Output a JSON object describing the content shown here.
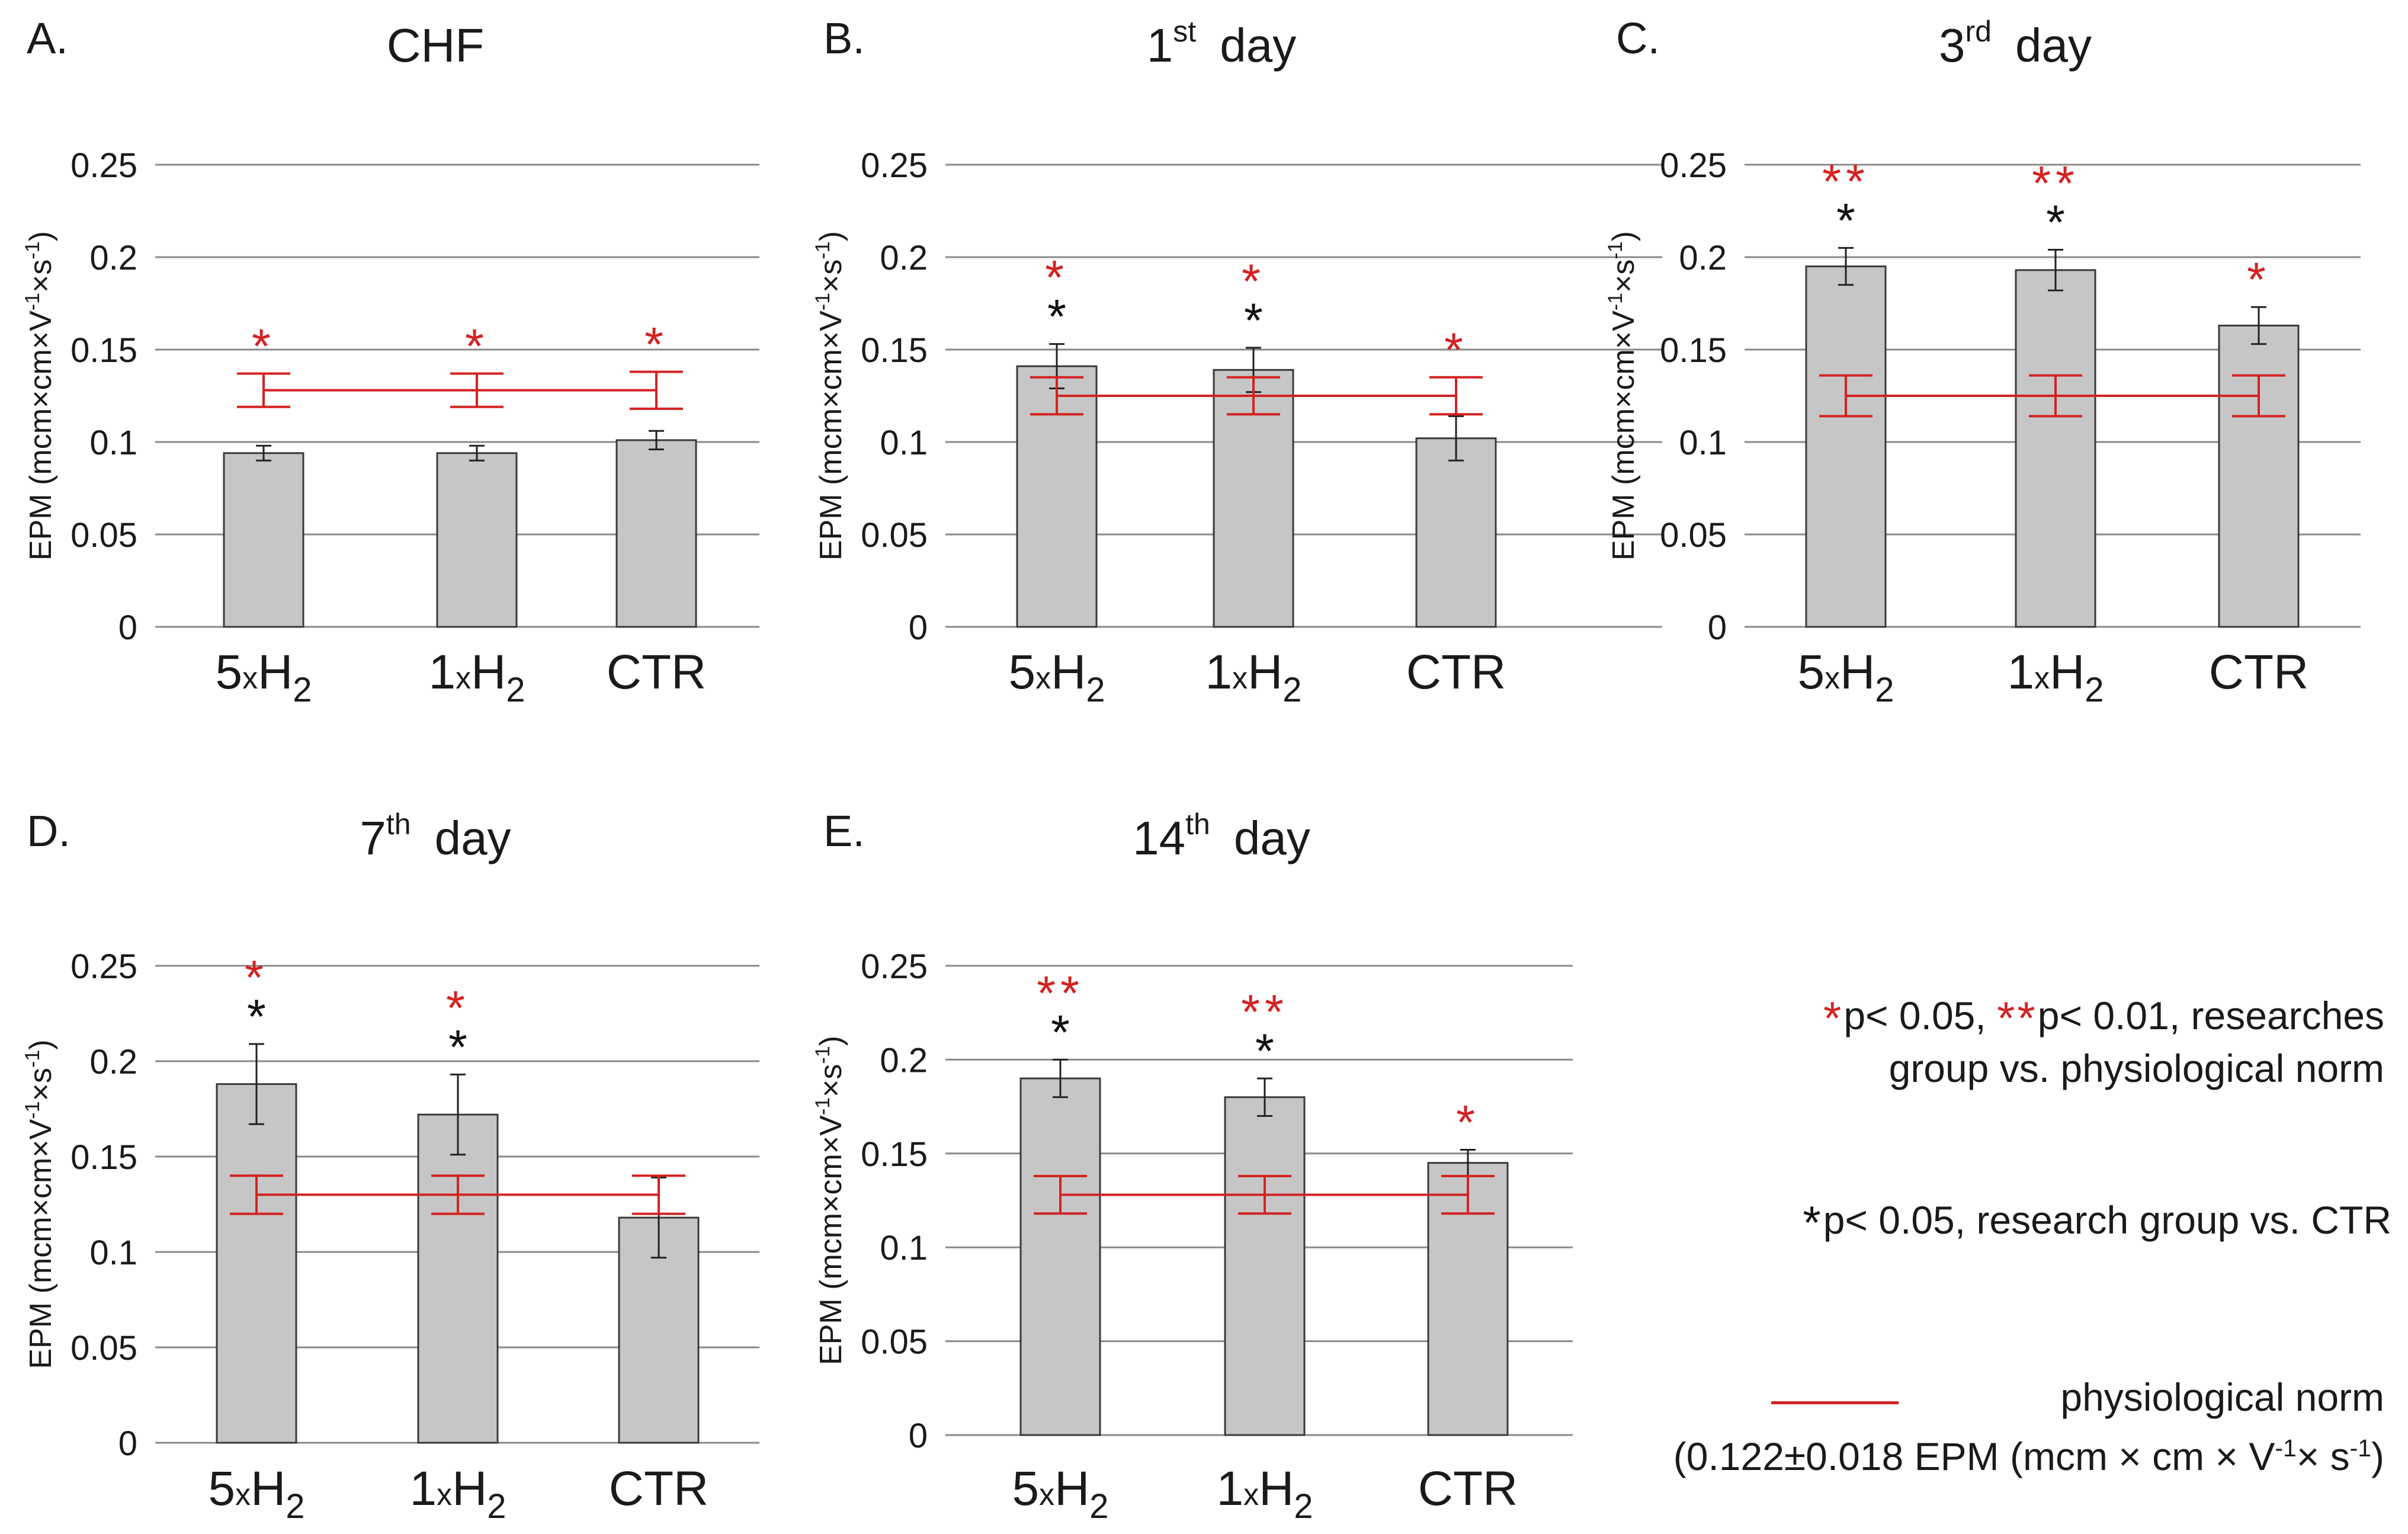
{
  "chart_data": [
    {
      "type": "bar",
      "panel_label": "A.",
      "title": "CHF",
      "title_parts": {
        "main": "CHF",
        "sup": "",
        "suffix": ""
      },
      "ylabel": "EPM (mcm×cm×V-1×s-1)",
      "ylabel_parts": {
        "pre": "EPM (mcm×cm×V",
        "sup1": "-1",
        "mid": "×s",
        "sup2": "-1",
        "post": ")"
      },
      "ylim": [
        0,
        0.25
      ],
      "yticks": [
        "0",
        "0.05",
        "0.1",
        "0.15",
        "0.2",
        "0.25"
      ],
      "categories": [
        {
          "prefix": "5",
          "mult": "x",
          "base": "H",
          "sub": "2"
        },
        {
          "prefix": "1",
          "mult": "x",
          "base": "H",
          "sub": "2"
        },
        {
          "prefix": "",
          "mult": "",
          "base": "CTR",
          "sub": ""
        }
      ],
      "values": [
        0.094,
        0.094,
        0.101
      ],
      "errors": [
        0.004,
        0.004,
        0.005
      ],
      "norm": {
        "mean": 0.128,
        "err": 0.009
      },
      "norm_errors": [
        0.009,
        0.009,
        0.01
      ],
      "stars_red": [
        "*",
        "*",
        "*"
      ],
      "stars_black": [
        "",
        "",
        ""
      ]
    },
    {
      "type": "bar",
      "panel_label": "B.",
      "title": "1st day",
      "title_parts": {
        "main": "1",
        "sup": "st",
        "suffix": "day"
      },
      "ylabel": "EPM (mcm×cm×V-1×s-1)",
      "ylabel_parts": {
        "pre": "EPM (mcm×cm×V",
        "sup1": "-1",
        "mid": "×s",
        "sup2": "-1",
        "post": ")"
      },
      "ylim": [
        0,
        0.25
      ],
      "yticks": [
        "0",
        "0.05",
        "0.1",
        "0.15",
        "0.2",
        "0.25"
      ],
      "categories": [
        {
          "prefix": "5",
          "mult": "x",
          "base": "H",
          "sub": "2"
        },
        {
          "prefix": "1",
          "mult": "x",
          "base": "H",
          "sub": "2"
        },
        {
          "prefix": "",
          "mult": "",
          "base": "CTR",
          "sub": ""
        }
      ],
      "values": [
        0.141,
        0.139,
        0.102
      ],
      "errors": [
        0.012,
        0.012,
        0.012
      ],
      "norm": {
        "mean": 0.125,
        "err": 0.01
      },
      "norm_errors": [
        0.01,
        0.01,
        0.01
      ],
      "stars_red": [
        "*",
        "*",
        "*"
      ],
      "stars_black": [
        "*",
        "*",
        ""
      ]
    },
    {
      "type": "bar",
      "panel_label": "C.",
      "title": "3rd day",
      "title_parts": {
        "main": "3",
        "sup": "rd",
        "suffix": "day"
      },
      "ylabel": "EPM (mcm×cm×V-1×s-1)",
      "ylabel_parts": {
        "pre": "EPM (mcm×cm×V",
        "sup1": "-1",
        "mid": "×s",
        "sup2": "-1",
        "post": ")"
      },
      "ylim": [
        0,
        0.25
      ],
      "yticks": [
        "0",
        "0.05",
        "0.1",
        "0.15",
        "0.2",
        "0.25"
      ],
      "categories": [
        {
          "prefix": "5",
          "mult": "x",
          "base": "H",
          "sub": "2"
        },
        {
          "prefix": "1",
          "mult": "x",
          "base": "H",
          "sub": "2"
        },
        {
          "prefix": "",
          "mult": "",
          "base": "CTR",
          "sub": ""
        }
      ],
      "values": [
        0.195,
        0.193,
        0.163
      ],
      "errors": [
        0.01,
        0.011,
        0.01
      ],
      "norm": {
        "mean": 0.125,
        "err": 0.011
      },
      "norm_errors": [
        0.011,
        0.011,
        0.011
      ],
      "stars_red": [
        "**",
        "**",
        "*"
      ],
      "stars_black": [
        "*",
        "*",
        ""
      ]
    },
    {
      "type": "bar",
      "panel_label": "D.",
      "title": "7th day",
      "title_parts": {
        "main": "7",
        "sup": "th",
        "suffix": "day"
      },
      "ylabel": "EPM (mcm×cm×V-1×s-1)",
      "ylabel_parts": {
        "pre": "EPM (mcm×cm×V",
        "sup1": "-1",
        "mid": "×s",
        "sup2": "-1",
        "post": ")"
      },
      "ylim": [
        0,
        0.25
      ],
      "yticks": [
        "0",
        "0.05",
        "0.1",
        "0.15",
        "0.2",
        "0.25"
      ],
      "categories": [
        {
          "prefix": "5",
          "mult": "x",
          "base": "H",
          "sub": "2"
        },
        {
          "prefix": "1",
          "mult": "x",
          "base": "H",
          "sub": "2"
        },
        {
          "prefix": "",
          "mult": "",
          "base": "CTR",
          "sub": ""
        }
      ],
      "values": [
        0.188,
        0.172,
        0.118
      ],
      "errors": [
        0.021,
        0.021,
        0.021
      ],
      "norm": {
        "mean": 0.13,
        "err": 0.01
      },
      "norm_errors": [
        0.01,
        0.01,
        0.01
      ],
      "stars_red": [
        "*",
        "*",
        ""
      ],
      "stars_black": [
        "*",
        "*",
        ""
      ]
    },
    {
      "type": "bar",
      "panel_label": "E.",
      "title": "14th day",
      "title_parts": {
        "main": "14",
        "sup": "th",
        "suffix": "day"
      },
      "ylabel": "EPM (mcm×cm×V-1×s-1)",
      "ylabel_parts": {
        "pre": "EPM (mcm×cm×V",
        "sup1": "-1",
        "mid": "×s",
        "sup2": "-1",
        "post": ")"
      },
      "ylim": [
        0,
        0.25
      ],
      "yticks": [
        "0",
        "0.05",
        "0.1",
        "0.15",
        "0.2",
        "0.25"
      ],
      "categories": [
        {
          "prefix": "5",
          "mult": "x",
          "base": "H",
          "sub": "2"
        },
        {
          "prefix": "1",
          "mult": "x",
          "base": "H",
          "sub": "2"
        },
        {
          "prefix": "",
          "mult": "",
          "base": "CTR",
          "sub": ""
        }
      ],
      "values": [
        0.19,
        0.18,
        0.145
      ],
      "errors": [
        0.01,
        0.01,
        0.007
      ],
      "norm": {
        "mean": 0.128,
        "err": 0.01
      },
      "norm_errors": [
        0.01,
        0.01,
        0.01
      ],
      "stars_red": [
        "**",
        "**",
        "*"
      ],
      "stars_black": [
        "*",
        "*",
        ""
      ]
    }
  ],
  "legend": {
    "sig_norm": {
      "star1": "*",
      "text1": "p< 0.05,",
      "star2": "**",
      "text2": "p< 0.01, researches",
      "line2": "group vs. physiological norm"
    },
    "sig_ctr": {
      "star": "*",
      "text": "p< 0.05, research group vs. CTR"
    },
    "norm": {
      "label": "physiological norm",
      "detail_pre": "(0.122±0.018 EPM (mcm × cm × V",
      "detail_sup1": "-1",
      "detail_mid": "× s",
      "detail_sup2": "-1",
      "detail_post": ")"
    }
  },
  "colors": {
    "bar_fill": "#c6c6c6",
    "bar_stroke": "#3a3a3a",
    "norm": "#d42222",
    "star_red": "#d42222",
    "star_black": "#111111",
    "grid": "#8a8a8a",
    "text": "#1a1a1a"
  }
}
